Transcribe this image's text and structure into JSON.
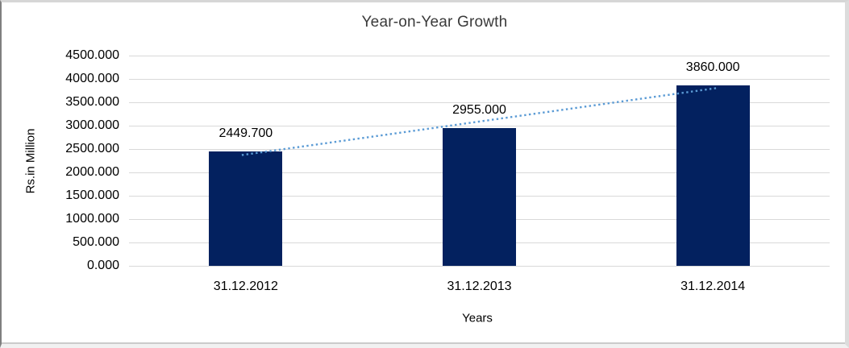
{
  "chart_data": {
    "type": "bar",
    "title": "Year-on-Year Growth",
    "xlabel": "Years",
    "ylabel": "Rs.in Million",
    "categories": [
      "31.12.2012",
      "31.12.2013",
      "31.12.2014"
    ],
    "values": [
      2449.7,
      2955,
      3860
    ],
    "data_labels": [
      "2449.700",
      "2955.000",
      "3860.000"
    ],
    "ytick_labels": [
      "4500.000",
      "4000.000",
      "3500.000",
      "3000.000",
      "2500.000",
      "2000.000",
      "1500.000",
      "1000.000",
      "500.000",
      "0.000"
    ],
    "ytick_values": [
      4500,
      4000,
      3500,
      3000,
      2500,
      2000,
      1500,
      1000,
      500,
      0
    ],
    "ylim": [
      0,
      4500
    ],
    "grid": true,
    "legend": "none",
    "bar_color": "#03215f",
    "trendline": {
      "type": "linear",
      "style": "dotted",
      "color": "#5b9bd5"
    }
  }
}
